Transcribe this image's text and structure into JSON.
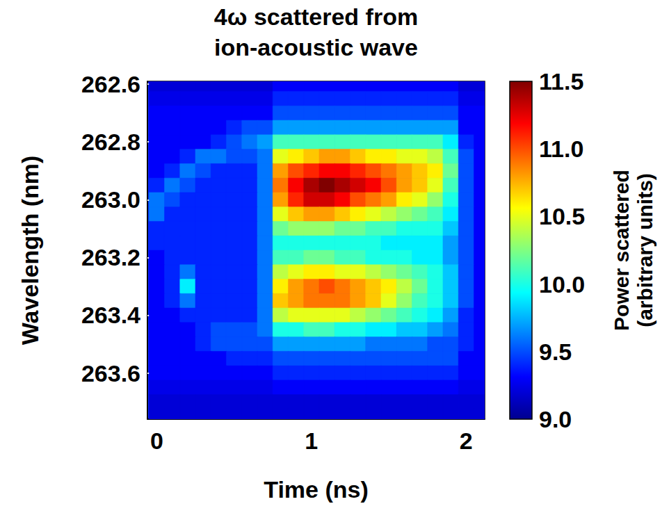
{
  "chart_data": {
    "type": "heatmap",
    "title": "4ω scattered from ion-acoustic wave",
    "x_label": "Time (ns)",
    "y_label": "Wavelength (nm)",
    "xlim": [
      -0.06,
      2.12
    ],
    "xticks": [
      0,
      1,
      2
    ],
    "ylim": [
      262.59,
      263.76
    ],
    "yticks": [
      262.6,
      262.8,
      {
        "value": 263,
        "label": "263.0"
      },
      263.2,
      263.4,
      263.6
    ],
    "x": [
      0,
      0.1,
      0.2,
      0.3,
      0.4,
      0.5,
      0.6,
      0.7,
      0.8,
      0.9,
      1.0,
      1.1,
      1.2,
      1.3,
      1.4,
      1.5,
      1.6,
      1.7,
      1.8,
      1.9,
      2.0,
      2.1
    ],
    "y": [
      262.6,
      262.65,
      262.7,
      262.75,
      262.8,
      262.85,
      262.9,
      262.95,
      263.0,
      263.05,
      263.1,
      263.15,
      263.2,
      263.25,
      263.3,
      263.35,
      263.4,
      263.45,
      263.5,
      263.55,
      263.6,
      263.65,
      263.7,
      263.75
    ],
    "cells": [
      [
        9.2,
        9.2,
        9.2,
        9.2,
        9.2,
        9.2,
        9.2,
        9.2,
        9.3,
        9.3,
        9.3,
        9.3,
        9.3,
        9.3,
        9.3,
        9.3,
        9.3,
        9.3,
        9.3,
        9.3,
        9.2,
        9.2
      ],
      [
        9.25,
        9.25,
        9.25,
        9.25,
        9.25,
        9.25,
        9.25,
        9.25,
        9.4,
        9.4,
        9.4,
        9.4,
        9.4,
        9.4,
        9.4,
        9.4,
        9.4,
        9.4,
        9.4,
        9.4,
        9.25,
        9.25
      ],
      [
        9.3,
        9.3,
        9.3,
        9.3,
        9.3,
        9.3,
        9.3,
        9.3,
        9.5,
        9.5,
        9.5,
        9.5,
        9.5,
        9.5,
        9.5,
        9.5,
        9.5,
        9.5,
        9.5,
        9.5,
        9.3,
        9.3
      ],
      [
        9.3,
        9.3,
        9.3,
        9.3,
        9.3,
        9.4,
        9.5,
        9.5,
        9.7,
        9.7,
        9.7,
        9.7,
        9.7,
        9.7,
        9.7,
        9.7,
        9.7,
        9.7,
        9.7,
        9.7,
        9.3,
        9.3
      ],
      [
        9.3,
        9.3,
        9.3,
        9.3,
        9.4,
        9.5,
        9.6,
        9.7,
        10.1,
        10.1,
        10.1,
        10.1,
        10.1,
        10.1,
        10.1,
        10.1,
        10.1,
        10.1,
        10.1,
        9.9,
        9.4,
        9.3
      ],
      [
        9.3,
        9.3,
        9.4,
        9.6,
        9.6,
        9.5,
        9.5,
        9.6,
        10.5,
        10.6,
        10.7,
        10.8,
        10.8,
        10.7,
        10.6,
        10.6,
        10.5,
        10.5,
        10.4,
        10.1,
        9.5,
        9.3
      ],
      [
        9.3,
        9.4,
        9.6,
        9.5,
        9.4,
        9.4,
        9.4,
        9.6,
        10.8,
        11.0,
        11.1,
        11.2,
        11.2,
        11.1,
        11.0,
        10.9,
        10.8,
        10.7,
        10.6,
        10.2,
        9.5,
        9.3
      ],
      [
        9.4,
        9.6,
        9.5,
        9.4,
        9.4,
        9.4,
        9.4,
        9.6,
        10.9,
        11.2,
        11.4,
        11.5,
        11.4,
        11.3,
        11.2,
        11.0,
        10.8,
        10.7,
        10.5,
        10.1,
        9.5,
        9.3
      ],
      [
        9.6,
        9.5,
        9.4,
        9.4,
        9.4,
        9.4,
        9.4,
        9.6,
        10.8,
        11.1,
        11.3,
        11.3,
        11.2,
        11.0,
        10.9,
        10.8,
        10.6,
        10.5,
        10.3,
        10.0,
        9.5,
        9.3
      ],
      [
        9.6,
        9.4,
        9.4,
        9.4,
        9.4,
        9.4,
        9.4,
        9.6,
        10.5,
        10.7,
        10.8,
        10.8,
        10.7,
        10.6,
        10.5,
        10.4,
        10.3,
        10.2,
        10.1,
        9.9,
        9.5,
        9.3
      ],
      [
        9.4,
        9.4,
        9.4,
        9.4,
        9.4,
        9.4,
        9.4,
        9.6,
        10.2,
        10.3,
        10.3,
        10.3,
        10.2,
        10.2,
        10.1,
        10.1,
        10.0,
        10.0,
        10.0,
        9.8,
        9.5,
        9.3
      ],
      [
        9.4,
        9.4,
        9.4,
        9.4,
        9.4,
        9.4,
        9.4,
        9.6,
        10.0,
        10.0,
        10.0,
        10.0,
        10.0,
        10.0,
        10.0,
        9.9,
        9.9,
        9.9,
        9.9,
        9.7,
        9.5,
        9.3
      ],
      [
        9.3,
        9.4,
        9.4,
        9.4,
        9.4,
        9.4,
        9.4,
        9.6,
        10.1,
        10.1,
        10.2,
        10.2,
        10.1,
        10.1,
        10.0,
        10.0,
        10.0,
        9.9,
        9.9,
        9.7,
        9.5,
        9.3
      ],
      [
        9.3,
        9.4,
        9.6,
        9.4,
        9.4,
        9.4,
        9.4,
        9.6,
        10.4,
        10.5,
        10.6,
        10.6,
        10.5,
        10.5,
        10.4,
        10.3,
        10.2,
        10.1,
        10.0,
        9.8,
        9.5,
        9.3
      ],
      [
        9.3,
        9.4,
        9.9,
        9.4,
        9.4,
        9.4,
        9.4,
        9.6,
        10.6,
        10.8,
        10.9,
        11.0,
        10.9,
        10.8,
        10.7,
        10.6,
        10.4,
        10.2,
        10.0,
        9.8,
        9.5,
        9.3
      ],
      [
        9.3,
        9.4,
        9.6,
        9.4,
        9.4,
        9.4,
        9.4,
        9.6,
        10.7,
        10.8,
        10.9,
        10.9,
        10.9,
        10.8,
        10.7,
        10.5,
        10.3,
        10.1,
        10.0,
        9.8,
        9.5,
        9.3
      ],
      [
        9.3,
        9.3,
        9.4,
        9.4,
        9.4,
        9.4,
        9.4,
        9.6,
        10.4,
        10.5,
        10.5,
        10.5,
        10.5,
        10.4,
        10.3,
        10.2,
        10.1,
        10.0,
        9.9,
        9.7,
        9.4,
        9.3
      ],
      [
        9.3,
        9.3,
        9.3,
        9.4,
        9.5,
        9.5,
        9.5,
        9.6,
        10.0,
        10.0,
        10.1,
        10.1,
        10.0,
        10.0,
        9.9,
        9.9,
        9.8,
        9.8,
        9.7,
        9.6,
        9.4,
        9.3
      ],
      [
        9.3,
        9.3,
        9.3,
        9.4,
        9.5,
        9.5,
        9.5,
        9.5,
        9.7,
        9.7,
        9.7,
        9.7,
        9.7,
        9.7,
        9.6,
        9.6,
        9.6,
        9.6,
        9.5,
        9.5,
        9.4,
        9.3
      ],
      [
        9.3,
        9.3,
        9.3,
        9.3,
        9.3,
        9.4,
        9.4,
        9.4,
        9.5,
        9.5,
        9.5,
        9.5,
        9.5,
        9.5,
        9.5,
        9.5,
        9.5,
        9.5,
        9.5,
        9.5,
        9.3,
        9.3
      ],
      [
        9.3,
        9.3,
        9.3,
        9.3,
        9.3,
        9.3,
        9.3,
        9.3,
        9.4,
        9.4,
        9.4,
        9.4,
        9.4,
        9.4,
        9.4,
        9.4,
        9.4,
        9.4,
        9.4,
        9.4,
        9.3,
        9.3
      ],
      [
        9.25,
        9.25,
        9.25,
        9.25,
        9.25,
        9.25,
        9.25,
        9.25,
        9.3,
        9.3,
        9.3,
        9.3,
        9.3,
        9.3,
        9.3,
        9.3,
        9.3,
        9.3,
        9.3,
        9.3,
        9.25,
        9.25
      ],
      [
        9.2,
        9.2,
        9.2,
        9.2,
        9.2,
        9.2,
        9.2,
        9.2,
        9.2,
        9.2,
        9.2,
        9.2,
        9.2,
        9.2,
        9.2,
        9.2,
        9.2,
        9.2,
        9.2,
        9.2,
        9.2,
        9.2
      ],
      [
        9.2,
        9.2,
        9.2,
        9.2,
        9.2,
        9.2,
        9.2,
        9.2,
        9.2,
        9.2,
        9.2,
        9.2,
        9.2,
        9.2,
        9.2,
        9.2,
        9.2,
        9.2,
        9.2,
        9.2,
        9.2,
        9.2
      ]
    ],
    "colorbar": {
      "label": "Power scattered (arbitrary units)",
      "range": [
        9,
        11.5
      ],
      "ticks": [
        {
          "value": 9,
          "label": "9.0"
        },
        9.5,
        {
          "value": 10,
          "label": "10.0"
        },
        10.5,
        {
          "value": 11,
          "label": "11.0"
        },
        11.5
      ]
    }
  }
}
